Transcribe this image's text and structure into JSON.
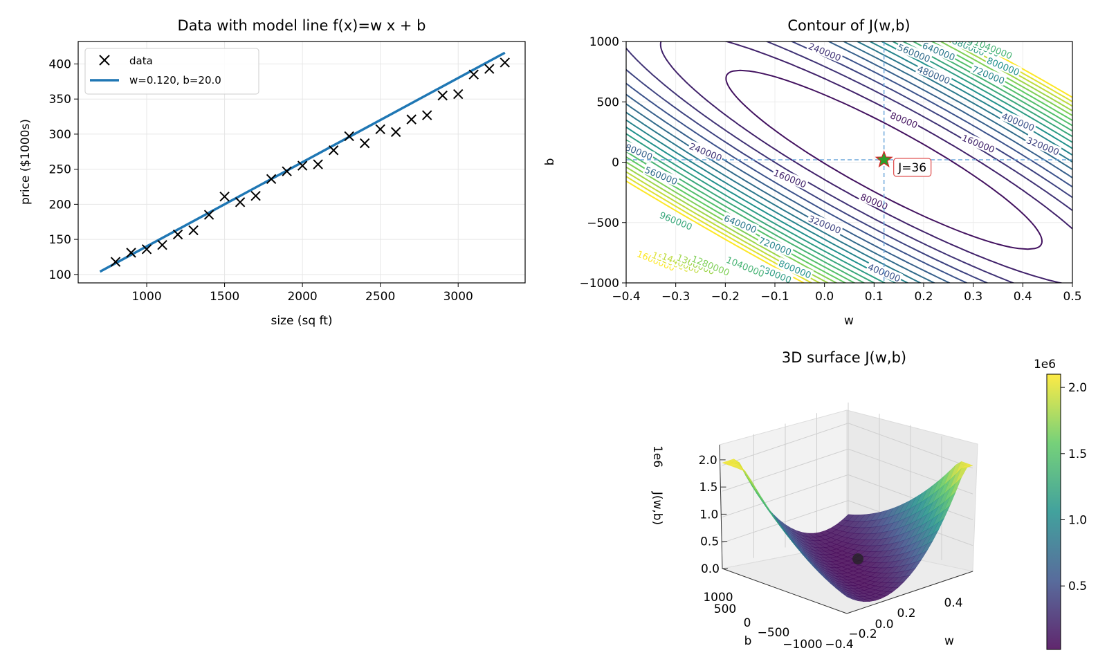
{
  "chart_data": [
    {
      "type": "scatter",
      "title": "Data with model line f(x)=w x + b",
      "xlabel": "size (sq ft)",
      "ylabel": "price ($1000s)",
      "xlim": [
        560,
        3430
      ],
      "ylim": [
        88,
        432
      ],
      "xticks": [
        1000,
        1500,
        2000,
        2500,
        3000
      ],
      "yticks": [
        100,
        150,
        200,
        250,
        300,
        350,
        400
      ],
      "grid": true,
      "legend_position": "top-left",
      "series": [
        {
          "name": "data",
          "kind": "scatter",
          "marker": "x",
          "color": "#000000",
          "x": [
            800,
            900,
            1000,
            1100,
            1200,
            1300,
            1400,
            1500,
            1600,
            1700,
            1800,
            1900,
            2000,
            2100,
            2200,
            2300,
            2400,
            2500,
            2600,
            2700,
            2800,
            2900,
            3000,
            3100,
            3200,
            3300
          ],
          "y": [
            118,
            131,
            136,
            142,
            157,
            163,
            185,
            211,
            203,
            212,
            236,
            247,
            255,
            257,
            277,
            297,
            287,
            307,
            303,
            321,
            327,
            355,
            357,
            385,
            393,
            402
          ]
        },
        {
          "name": "w=0.120, b=20.0",
          "kind": "line",
          "color": "#1f77b4",
          "x": [
            700,
            3300
          ],
          "y": [
            104,
            416
          ]
        }
      ]
    },
    {
      "type": "contour",
      "title": "Contour of J(w,b)",
      "xlabel": "w",
      "ylabel": "b",
      "xlim": [
        -0.4,
        0.5
      ],
      "ylim": [
        -1000,
        1000
      ],
      "xticks": [
        -0.4,
        -0.3,
        -0.2,
        -0.1,
        0.0,
        0.1,
        0.2,
        0.3,
        0.4,
        0.5
      ],
      "yticks": [
        -1000,
        -500,
        0,
        500,
        1000
      ],
      "grid": true,
      "colormap": "viridis",
      "levels": [
        80000,
        160000,
        240000,
        320000,
        400000,
        480000,
        560000,
        640000,
        720000,
        800000,
        880000,
        960000,
        1040000,
        1120000,
        1200000,
        1280000,
        1360000,
        1440000,
        1520000,
        1600000
      ],
      "level_labels": [
        {
          "text": "240000",
          "w": 0.0,
          "b": 910
        },
        {
          "text": "560000",
          "w": 0.18,
          "b": 900
        },
        {
          "text": "640000",
          "w": 0.23,
          "b": 915
        },
        {
          "text": "880000",
          "w": 0.29,
          "b": 955
        },
        {
          "text": "960000",
          "w": 0.32,
          "b": 945
        },
        {
          "text": "1040000",
          "w": 0.34,
          "b": 935
        },
        {
          "text": "480000",
          "w": 0.22,
          "b": 720
        },
        {
          "text": "720000",
          "w": 0.33,
          "b": 720
        },
        {
          "text": "800000",
          "w": 0.36,
          "b": 790
        },
        {
          "text": "80000",
          "w": 0.16,
          "b": 345
        },
        {
          "text": "400000",
          "w": 0.39,
          "b": 330
        },
        {
          "text": "160000",
          "w": 0.31,
          "b": 150
        },
        {
          "text": "320000",
          "w": 0.44,
          "b": 130
        },
        {
          "text": "480000",
          "w": -0.38,
          "b": 90
        },
        {
          "text": "240000",
          "w": -0.24,
          "b": 80
        },
        {
          "text": "560000",
          "w": -0.33,
          "b": -115
        },
        {
          "text": "160000",
          "w": -0.07,
          "b": -140
        },
        {
          "text": "80000",
          "w": 0.1,
          "b": -330
        },
        {
          "text": "960000",
          "w": -0.3,
          "b": -490
        },
        {
          "text": "640000",
          "w": -0.17,
          "b": -515
        },
        {
          "text": "320000",
          "w": 0.0,
          "b": -520
        },
        {
          "text": "720000",
          "w": -0.1,
          "b": -700
        },
        {
          "text": "800000",
          "w": -0.06,
          "b": -890
        },
        {
          "text": "880000",
          "w": -0.1,
          "b": -930
        },
        {
          "text": "1040000",
          "w": -0.16,
          "b": -870
        },
        {
          "text": "400000",
          "w": 0.12,
          "b": -920
        },
        {
          "text": "1600000",
          "w": -0.34,
          "b": -820
        },
        {
          "text": "1520000",
          "w": -0.31,
          "b": -830
        },
        {
          "text": "1440000",
          "w": -0.29,
          "b": -840
        },
        {
          "text": "1360000",
          "w": -0.26,
          "b": -850
        },
        {
          "text": "1280000",
          "w": -0.23,
          "b": -860
        }
      ],
      "marker": {
        "w": 0.12,
        "b": 20,
        "shape": "star",
        "color": "#2ca02c"
      },
      "annotation": {
        "text": "J=36",
        "w": 0.12,
        "b": 20
      },
      "crosshair": {
        "w": 0.12,
        "b": 20,
        "style": "dashed"
      }
    },
    {
      "type": "surface3d",
      "title": "3D surface J(w,b)",
      "xlabel": "w",
      "ylabel": "b",
      "zlabel": "J(w,b)",
      "zoffset": "1e6",
      "zticks": [
        "0.0",
        "0.5",
        "1.0",
        "1.5",
        "2.0"
      ],
      "wticks": [
        "−0.4",
        "−0.2",
        "0.0",
        "0.2",
        "0.4"
      ],
      "bticks": [
        "−1000",
        "−500",
        "0",
        "500",
        "1000"
      ],
      "colormap": "viridis",
      "zrange": [
        0,
        2.1
      ],
      "marker": {
        "w": 0.12,
        "b": 20,
        "J": 36,
        "color": "#222222"
      },
      "colorbar": {
        "offset": "1e6",
        "ticks": [
          "0.5",
          "1.0",
          "1.5",
          "2.0"
        ],
        "values": [
          0.5,
          1.0,
          1.5,
          2.0
        ],
        "range": [
          0.02,
          2.1
        ]
      }
    }
  ]
}
